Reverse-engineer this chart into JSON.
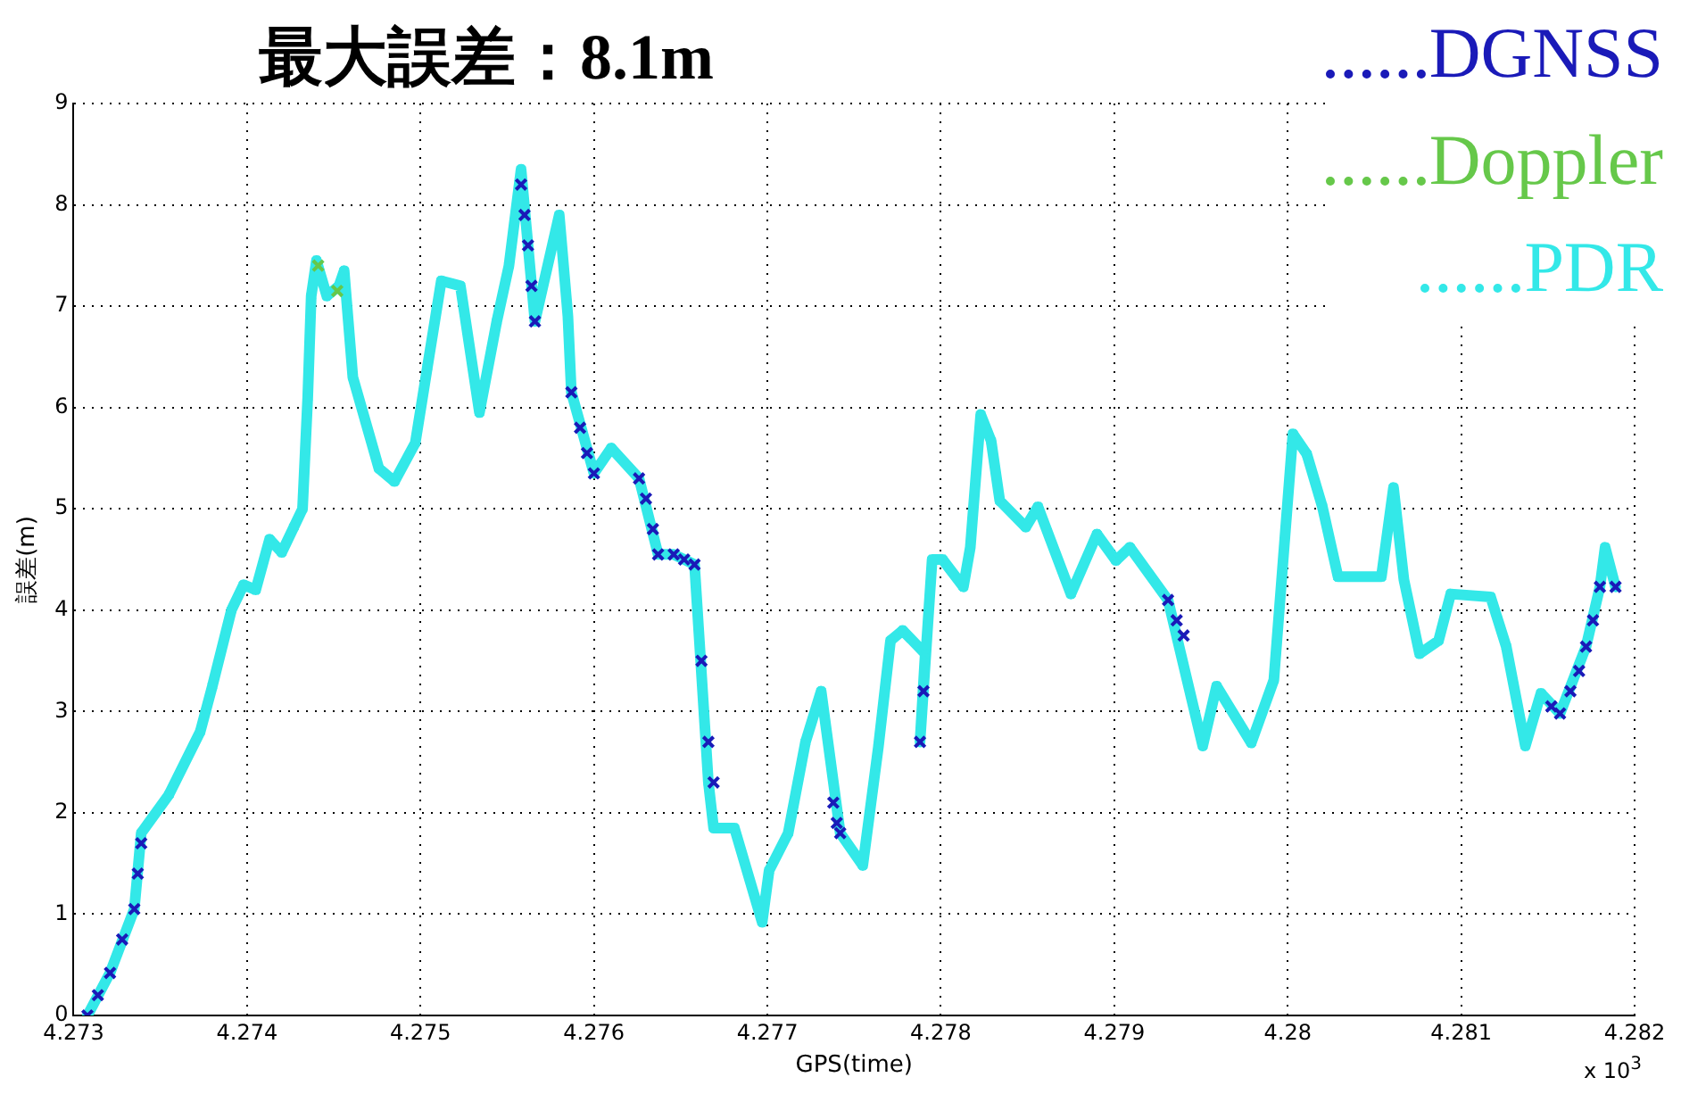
{
  "chart_data": {
    "type": "line",
    "title": "最大誤差：8.1m",
    "xlabel": "GPS(time)",
    "ylabel": "誤差(m)",
    "annotations": [
      "x 10$^{3}$"
    ],
    "xlim": [
      4.273,
      4.282
    ],
    "xticks": [
      4.273,
      4.274,
      4.275,
      4.276,
      4.277,
      4.278,
      4.279,
      4.28,
      4.281,
      4.282
    ],
    "ylim": [
      0,
      9
    ],
    "yticks": [
      0,
      1,
      2,
      3,
      4,
      5,
      6,
      7,
      8,
      9
    ],
    "grid": true,
    "legend": "top right",
    "marker": "cross",
    "series": [
      {
        "name": "DGNSS",
        "type": "scatter",
        "color": "#1a1ab8",
        "x": [
          4.27308,
          4.27314,
          4.27321,
          4.27328,
          4.27335,
          4.27337,
          4.27339,
          4.27558,
          4.2756,
          4.27562,
          4.27564,
          4.27566,
          4.27587,
          4.27592,
          4.27596,
          4.276,
          4.27626,
          4.2763,
          4.27634,
          4.27637,
          4.27646,
          4.27652,
          4.27658,
          4.27662,
          4.27666,
          4.27669,
          4.27738,
          4.2774,
          4.27742,
          4.27788,
          4.2779,
          4.27931,
          4.27936,
          4.2794,
          4.28152,
          4.28157,
          4.28163,
          4.28168,
          4.28172,
          4.28176,
          4.2818,
          4.28189
        ],
        "values": [
          0,
          0.2,
          0.42,
          0.75,
          1.05,
          1.4,
          1.7,
          8.2,
          7.9,
          7.6,
          7.2,
          6.85,
          6.15,
          5.8,
          5.55,
          5.35,
          5.3,
          5.1,
          4.8,
          4.55,
          4.55,
          4.5,
          4.45,
          3.5,
          2.7,
          2.3,
          2.1,
          1.9,
          1.8,
          2.7,
          3.2,
          4.1,
          3.9,
          3.75,
          3.05,
          2.98,
          3.2,
          3.4,
          3.64,
          3.9,
          4.23,
          4.23
        ]
      },
      {
        "name": "Doppler",
        "type": "scatter",
        "color": "#66c84a",
        "x": [
          4.27441,
          4.27452
        ],
        "values": [
          7.4,
          7.15
        ]
      },
      {
        "name": "PDR",
        "color": "#33e8e8",
        "x": [
          4.27308,
          4.27321,
          4.27335,
          4.27339,
          4.27355,
          4.27373,
          4.2738,
          4.27391,
          4.27398,
          4.27405,
          4.27413,
          4.2742,
          4.27427,
          4.27432,
          4.27435,
          4.27437,
          4.2744,
          4.27446,
          4.27453,
          4.27456,
          4.27461,
          4.27476,
          4.27485,
          4.27497,
          4.27504,
          4.27512,
          4.27523,
          4.27534,
          4.27544,
          4.27551,
          4.27558,
          4.27562,
          4.27566,
          4.2758,
          4.27585,
          4.27587,
          4.276,
          4.2761,
          4.27626,
          4.27637,
          4.27646,
          4.27658,
          4.27666,
          4.27669,
          4.27681,
          4.27697,
          4.27701,
          4.27712,
          4.27722,
          4.27731,
          4.27742,
          4.27755,
          4.27764,
          4.27771,
          4.27778,
          4.27791,
          4.27788,
          4.27795,
          4.27801,
          4.27813,
          4.27817,
          4.27823,
          4.27829,
          4.27834,
          4.27849,
          4.27856,
          4.27875,
          4.2789,
          4.27901,
          4.27909,
          4.27931,
          4.27951,
          4.27959,
          4.27979,
          4.27992,
          4.28003,
          4.28011,
          4.2802,
          4.28029,
          4.28054,
          4.28061,
          4.28067,
          4.28076,
          4.28087,
          4.28094,
          4.28117,
          4.28126,
          4.28137,
          4.28146,
          4.28157,
          4.28172,
          4.2818,
          4.28183,
          4.28189
        ],
        "values": [
          0,
          0.42,
          1.05,
          1.8,
          2.18,
          2.8,
          3.25,
          4.0,
          4.25,
          4.2,
          4.7,
          4.57,
          4.82,
          5.0,
          6.1,
          7.1,
          7.45,
          7.1,
          7.2,
          7.35,
          6.3,
          5.4,
          5.27,
          5.65,
          6.4,
          7.25,
          7.2,
          5.95,
          6.85,
          7.4,
          8.35,
          7.6,
          6.85,
          7.9,
          6.9,
          6.15,
          5.35,
          5.6,
          5.3,
          4.55,
          4.55,
          4.45,
          2.3,
          1.85,
          1.85,
          0.92,
          1.43,
          1.8,
          2.7,
          3.2,
          1.8,
          1.48,
          2.65,
          3.7,
          3.8,
          3.57,
          2.7,
          4.5,
          4.5,
          4.23,
          4.62,
          5.93,
          5.67,
          5.08,
          4.82,
          5.02,
          4.16,
          4.75,
          4.49,
          4.62,
          4.1,
          2.66,
          3.25,
          2.69,
          3.31,
          5.74,
          5.54,
          5.02,
          4.33,
          4.33,
          5.21,
          4.3,
          3.57,
          3.7,
          4.16,
          4.13,
          3.64,
          2.66,
          3.18,
          2.98,
          3.64,
          4.23,
          4.62,
          4.23
        ]
      }
    ]
  }
}
